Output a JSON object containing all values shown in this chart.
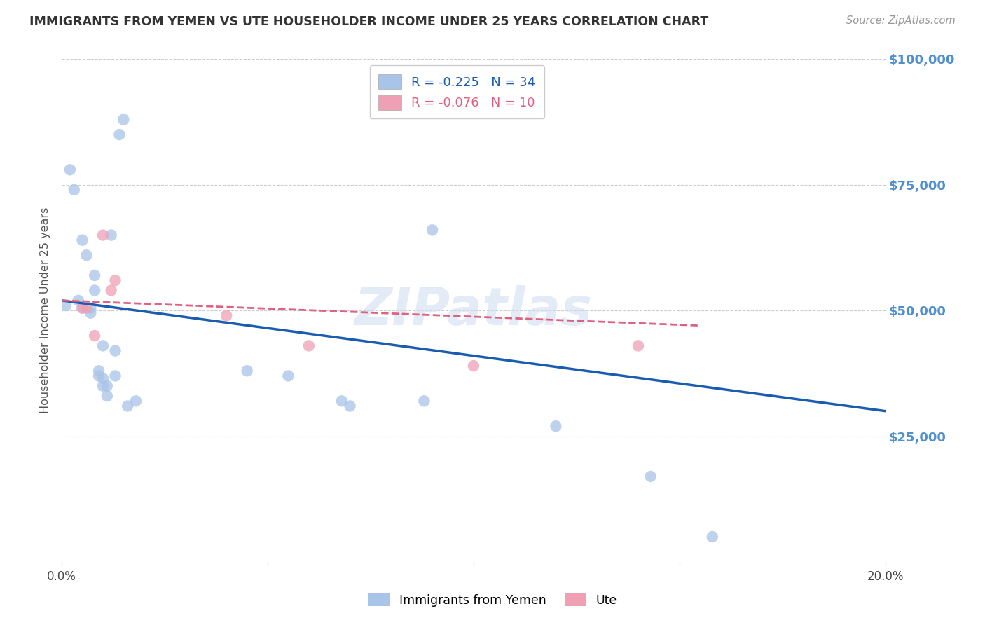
{
  "title": "IMMIGRANTS FROM YEMEN VS UTE HOUSEHOLDER INCOME UNDER 25 YEARS CORRELATION CHART",
  "source": "Source: ZipAtlas.com",
  "ylabel": "Householder Income Under 25 years",
  "x_min": 0.0,
  "x_max": 0.2,
  "y_min": 0,
  "y_max": 100000,
  "watermark": "ZIPatlas",
  "legend_entries": [
    {
      "label": "R = -0.225   N = 34",
      "color": "#a8c4e8"
    },
    {
      "label": "R = -0.076   N = 10",
      "color": "#f0a0b5"
    }
  ],
  "legend_label1": "Immigrants from Yemen",
  "legend_label2": "Ute",
  "blue_scatter_x": [
    0.001,
    0.002,
    0.003,
    0.004,
    0.005,
    0.005,
    0.006,
    0.007,
    0.007,
    0.008,
    0.008,
    0.009,
    0.009,
    0.01,
    0.01,
    0.01,
    0.011,
    0.011,
    0.012,
    0.013,
    0.013,
    0.014,
    0.015,
    0.016,
    0.018,
    0.045,
    0.055,
    0.068,
    0.07,
    0.088,
    0.09,
    0.12,
    0.143,
    0.158
  ],
  "blue_scatter_y": [
    51000,
    78000,
    74000,
    52000,
    50500,
    64000,
    61000,
    50500,
    49500,
    57000,
    54000,
    38000,
    37000,
    36500,
    35000,
    43000,
    35000,
    33000,
    65000,
    42000,
    37000,
    85000,
    88000,
    31000,
    32000,
    38000,
    37000,
    32000,
    31000,
    32000,
    66000,
    27000,
    17000,
    5000
  ],
  "pink_scatter_x": [
    0.005,
    0.006,
    0.008,
    0.01,
    0.012,
    0.013,
    0.04,
    0.06,
    0.1,
    0.14
  ],
  "pink_scatter_y": [
    50500,
    50500,
    45000,
    65000,
    54000,
    56000,
    49000,
    43000,
    39000,
    43000
  ],
  "blue_line_x": [
    0.0,
    0.2
  ],
  "blue_line_y": [
    52000,
    30000
  ],
  "pink_line_x": [
    0.0,
    0.155
  ],
  "pink_line_y": [
    52000,
    47000
  ],
  "background_color": "#ffffff",
  "grid_color": "#cccccc",
  "scatter_size": 140,
  "title_color": "#333333",
  "axis_label_color": "#5090d0",
  "blue_scatter_color": "#a8c4e8",
  "pink_scatter_color": "#f0a0b5",
  "blue_line_color": "#1a5cb0",
  "pink_line_color": "#e06080",
  "ytick_labels": [
    "$25,000",
    "$50,000",
    "$75,000",
    "$100,000"
  ],
  "ytick_values": [
    25000,
    50000,
    75000,
    100000
  ]
}
